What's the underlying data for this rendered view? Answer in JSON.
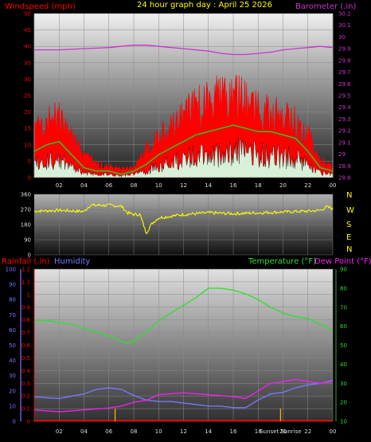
{
  "colors": {
    "wind_avg": "#ff0000",
    "wind_gust_band": "#ff0000",
    "wind_mid": "#22cc22",
    "wind_calm": "#d8f0d8",
    "barometer": "#cc33cc",
    "wind_dir": "#ffff00",
    "rain": "#ff0000",
    "humidity": "#7777ff",
    "temperature": "#33dd33",
    "dew_point": "#ee22ee",
    "sunrise_sunset": "#ffaa00",
    "left_axis_wind": "#ff0000",
    "right_axis_baro": "#cc33cc",
    "rain_axis": "#ff0000",
    "humidity_axis": "#7777ff",
    "temp_axis": "#33dd33"
  },
  "header": {
    "windspeed_label": "Windspeed (mph)",
    "title": "24 hour graph day : April 25 2026",
    "barometer_label": "Barometer (.in)"
  },
  "compass": [
    "N",
    "W",
    "S",
    "E",
    "N"
  ],
  "bottom_header": {
    "rain_label": "Rainfall (.in)",
    "humidity_label": "Humidity",
    "temperature_label": "Temperature (°F)",
    "dewpoint_label": "Dew Point (°F)"
  },
  "x_ticks": [
    "02",
    "04",
    "06",
    "08",
    "10",
    "12",
    "14",
    "16",
    "18",
    "20",
    "22",
    "00"
  ],
  "sun_labels": {
    "sunrise": "Sunset",
    "sunset": "Sunrise"
  },
  "chart_data": [
    {
      "type": "line",
      "title": "24 hour graph day : April 25 2026",
      "x": "hour of day (0-24)",
      "xlim": [
        0,
        24
      ],
      "left_axis": {
        "label": "Windspeed (mph)",
        "ylim": [
          0,
          50
        ],
        "ticks": [
          "0",
          "5",
          "10",
          "15",
          "20",
          "25",
          "30",
          "35",
          "40",
          "45",
          "50"
        ]
      },
      "right_axis": {
        "label": "Barometer (.in)",
        "ylim": [
          28.8,
          30.2
        ],
        "ticks": [
          "28.8",
          "28.9",
          "29",
          "29.1",
          "29.2",
          "29.3",
          "29.4",
          "29.5",
          "29.6",
          "29.7",
          "29.8",
          "29.9",
          "30",
          "30.1",
          "30.2"
        ]
      },
      "series": [
        {
          "name": "Barometer (.in)",
          "axis": "right",
          "points": [
            [
              0,
              29.89
            ],
            [
              2,
              29.89
            ],
            [
              4,
              29.9
            ],
            [
              6,
              29.91
            ],
            [
              7,
              29.92
            ],
            [
              8,
              29.93
            ],
            [
              9,
              29.93
            ],
            [
              10,
              29.92
            ],
            [
              12,
              29.9
            ],
            [
              14,
              29.88
            ],
            [
              15,
              29.86
            ],
            [
              16,
              29.85
            ],
            [
              17,
              29.85
            ],
            [
              18,
              29.86
            ],
            [
              19,
              29.87
            ],
            [
              20,
              29.89
            ],
            [
              21,
              29.9
            ],
            [
              22,
              29.91
            ],
            [
              23,
              29.92
            ],
            [
              24,
              29.91
            ]
          ]
        },
        {
          "name": "Windspeed (mph)",
          "axis": "left",
          "points": [
            [
              0,
              8
            ],
            [
              1,
              10
            ],
            [
              2,
              11
            ],
            [
              3,
              7
            ],
            [
              4,
              3
            ],
            [
              5,
              2
            ],
            [
              6,
              2
            ],
            [
              7,
              1
            ],
            [
              8,
              2
            ],
            [
              9,
              4
            ],
            [
              10,
              7
            ],
            [
              11,
              9
            ],
            [
              12,
              11
            ],
            [
              13,
              13
            ],
            [
              14,
              14
            ],
            [
              15,
              15
            ],
            [
              16,
              16
            ],
            [
              17,
              15
            ],
            [
              18,
              14
            ],
            [
              19,
              14
            ],
            [
              20,
              13
            ],
            [
              21,
              12
            ],
            [
              22,
              8
            ],
            [
              23,
              3
            ],
            [
              24,
              2
            ]
          ]
        },
        {
          "name": "Gust (mph)",
          "axis": "left",
          "points": [
            [
              0,
              17
            ],
            [
              1,
              20
            ],
            [
              2,
              22
            ],
            [
              3,
              15
            ],
            [
              4,
              8
            ],
            [
              5,
              5
            ],
            [
              6,
              4
            ],
            [
              7,
              3
            ],
            [
              8,
              4
            ],
            [
              9,
              10
            ],
            [
              10,
              15
            ],
            [
              11,
              18
            ],
            [
              12,
              22
            ],
            [
              13,
              26
            ],
            [
              14,
              28
            ],
            [
              15,
              30
            ],
            [
              16,
              30
            ],
            [
              17,
              27
            ],
            [
              18,
              24
            ],
            [
              19,
              23
            ],
            [
              20,
              22
            ],
            [
              21,
              20
            ],
            [
              22,
              15
            ],
            [
              23,
              6
            ],
            [
              24,
              4
            ]
          ]
        }
      ],
      "grid": true
    },
    {
      "type": "line",
      "title": "",
      "left_axis": {
        "ylim": [
          0,
          360
        ],
        "ticks": [
          "0",
          "90",
          "180",
          "270",
          "360"
        ]
      },
      "xlim": [
        0,
        24
      ],
      "series": [
        {
          "name": "Wind Direction",
          "points": [
            [
              0,
              260
            ],
            [
              2,
              265
            ],
            [
              4,
              258
            ],
            [
              4.5,
              295
            ],
            [
              6,
              295
            ],
            [
              7,
              290
            ],
            [
              7.5,
              250
            ],
            [
              8,
              240
            ],
            [
              8.5,
              240
            ],
            [
              9,
              130
            ],
            [
              9.5,
              190
            ],
            [
              10,
              220
            ],
            [
              12,
              240
            ],
            [
              14,
              250
            ],
            [
              16,
              245
            ],
            [
              18,
              250
            ],
            [
              20,
              255
            ],
            [
              22,
              260
            ],
            [
              23,
              265
            ],
            [
              23.5,
              285
            ],
            [
              24,
              275
            ]
          ]
        }
      ],
      "grid": true
    },
    {
      "type": "line",
      "title": "",
      "xlim": [
        0,
        24
      ],
      "left_axis_rain": {
        "label": "Rainfall (.in)",
        "ylim": [
          0,
          1.2
        ],
        "ticks": [
          "0",
          "0.1",
          "0.2",
          "0.3",
          "0.4",
          "0.5",
          "0.6",
          "0.7",
          "0.8",
          "0.9",
          "1",
          "1.1",
          "1.2"
        ]
      },
      "left_axis_humidity": {
        "label": "Humidity",
        "ylim": [
          0,
          100
        ],
        "ticks": [
          "0",
          "10",
          "20",
          "30",
          "40",
          "50",
          "60",
          "70",
          "80",
          "90",
          "100"
        ]
      },
      "right_axis": {
        "label": "Temperature (°F) / Dew Point (°F)",
        "ylim": [
          10,
          90
        ],
        "ticks": [
          "10",
          "20",
          "30",
          "40",
          "50",
          "60",
          "70",
          "80",
          "90"
        ]
      },
      "series": [
        {
          "name": "Temperature (°F)",
          "axis": "right",
          "points": [
            [
              0,
              63
            ],
            [
              1,
              63
            ],
            [
              2,
              62
            ],
            [
              3,
              61
            ],
            [
              4,
              59
            ],
            [
              5,
              57
            ],
            [
              6,
              55
            ],
            [
              7,
              52
            ],
            [
              7.5,
              51
            ],
            [
              8,
              52
            ],
            [
              9,
              57
            ],
            [
              10,
              63
            ],
            [
              11,
              67
            ],
            [
              12,
              71
            ],
            [
              13,
              75
            ],
            [
              14,
              80
            ],
            [
              15,
              80
            ],
            [
              16,
              79
            ],
            [
              17,
              77
            ],
            [
              18,
              74
            ],
            [
              19,
              70
            ],
            [
              20,
              67
            ],
            [
              21,
              65
            ],
            [
              22,
              64
            ],
            [
              23,
              61
            ],
            [
              24,
              58
            ]
          ]
        },
        {
          "name": "Humidity",
          "axis": "humidity",
          "points": [
            [
              0,
              16
            ],
            [
              2,
              15
            ],
            [
              4,
              18
            ],
            [
              5,
              21
            ],
            [
              6,
              22
            ],
            [
              7,
              21
            ],
            [
              8,
              17
            ],
            [
              9,
              14
            ],
            [
              10,
              13
            ],
            [
              11,
              13
            ],
            [
              12,
              12
            ],
            [
              13,
              11
            ],
            [
              14,
              10
            ],
            [
              15,
              10
            ],
            [
              16,
              9
            ],
            [
              17,
              9
            ],
            [
              18,
              14
            ],
            [
              19,
              18
            ],
            [
              20,
              19
            ],
            [
              21,
              22
            ],
            [
              22,
              24
            ],
            [
              23,
              25
            ],
            [
              24,
              27
            ]
          ]
        },
        {
          "name": "Dew Point (°F)",
          "axis": "right",
          "points": [
            [
              0,
              16
            ],
            [
              2,
              15
            ],
            [
              4,
              16
            ],
            [
              6,
              17
            ],
            [
              7,
              18
            ],
            [
              8,
              20
            ],
            [
              9,
              21
            ],
            [
              10,
              24
            ],
            [
              12,
              25
            ],
            [
              14,
              24
            ],
            [
              16,
              23
            ],
            [
              17,
              22
            ],
            [
              18,
              26
            ],
            [
              19,
              30
            ],
            [
              20,
              31
            ],
            [
              21,
              32
            ],
            [
              22,
              31
            ],
            [
              23,
              30
            ],
            [
              24,
              31
            ]
          ]
        },
        {
          "name": "Rainfall (.in)",
          "axis": "rain",
          "points": [
            [
              0,
              0
            ],
            [
              24,
              0
            ]
          ]
        }
      ],
      "sun_markers": [
        {
          "label": "Sunset",
          "hour": 6.5
        },
        {
          "label": "Sunrise",
          "hour": 19.8
        }
      ],
      "grid": true
    }
  ]
}
